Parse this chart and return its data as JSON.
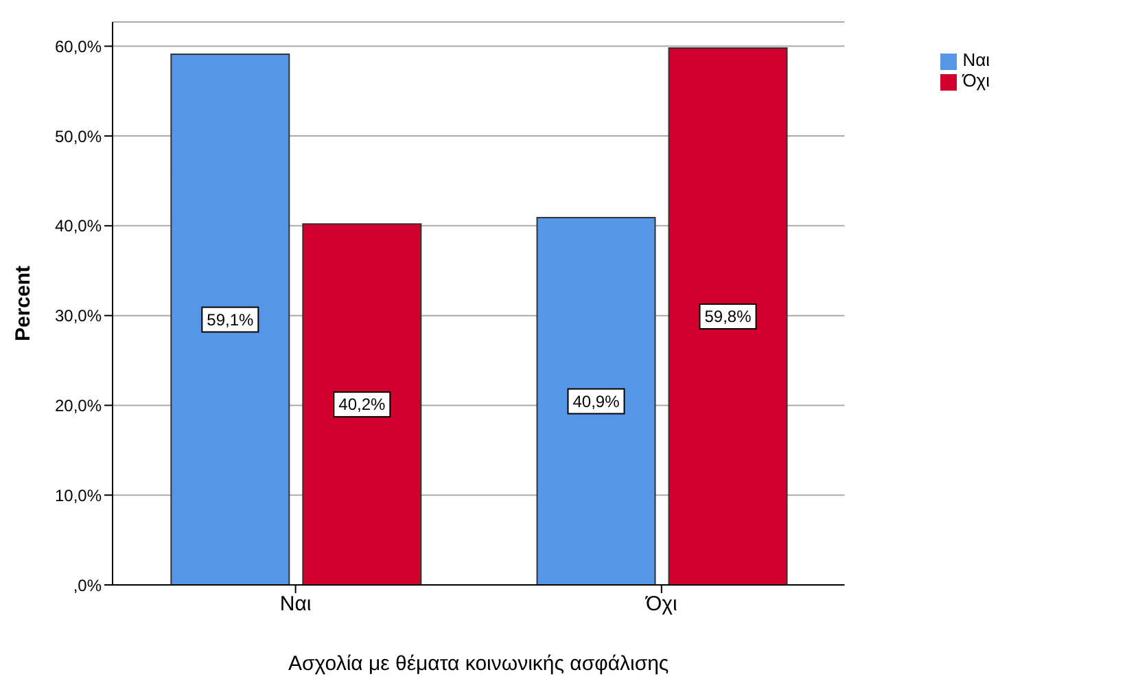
{
  "chart_data": {
    "type": "bar",
    "xlabel": "Ασχολία με θέματα κοινωνικής ασφάλισης",
    "ylabel": "Percent",
    "categories": [
      "Ναι",
      "Όχι"
    ],
    "series": [
      {
        "name": "Ναι",
        "color": "#5596e6",
        "values": [
          59.1,
          40.9
        ],
        "value_labels": [
          "59,1%",
          "40,9%"
        ]
      },
      {
        "name": "Όχι",
        "color": "#d2002c",
        "values": [
          40.2,
          59.8
        ],
        "value_labels": [
          "40,2%",
          "59,8%"
        ]
      }
    ],
    "ylim": [
      0,
      62.7
    ],
    "yticks": [
      {
        "value": 0,
        "label": ",0%"
      },
      {
        "value": 10,
        "label": "10,0%"
      },
      {
        "value": 20,
        "label": "20,0%"
      },
      {
        "value": 30,
        "label": "30,0%"
      },
      {
        "value": 40,
        "label": "40,0%"
      },
      {
        "value": 50,
        "label": "50,0%"
      },
      {
        "value": 60,
        "label": "60,0%"
      }
    ],
    "grid": "y",
    "legend": "top right"
  }
}
